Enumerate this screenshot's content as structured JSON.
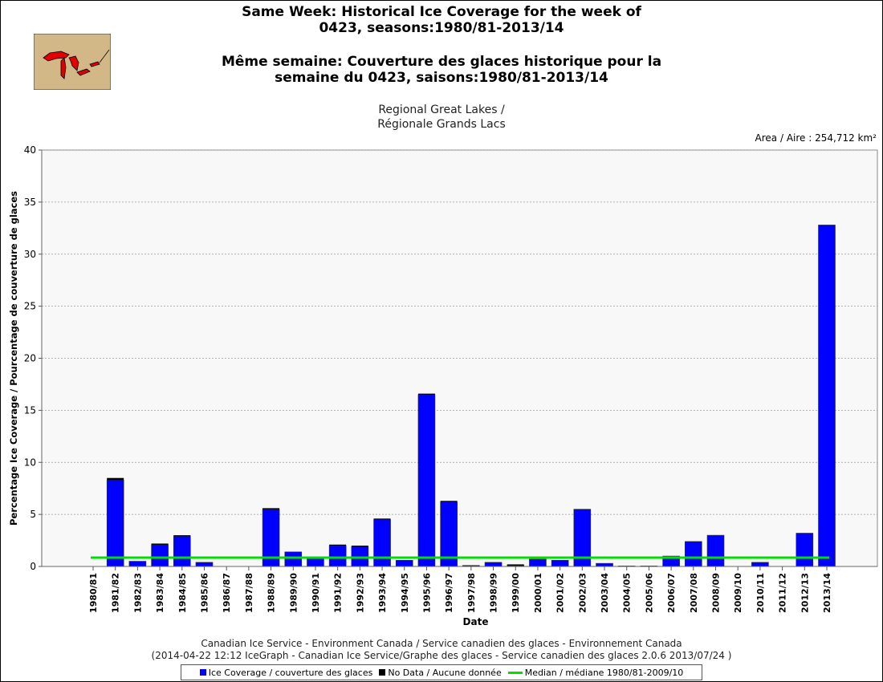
{
  "title_line1": "Same Week: Historical Ice Coverage for the week of",
  "title_line2": "0423, seasons:1980/81-2013/14",
  "title_fr_line1": "Même semaine: Couverture des glaces historique pour la",
  "title_fr_line2": "semaine du 0423, saisons:1980/81-2013/14",
  "region_line1": "Regional Great Lakes /",
  "region_line2": "Régionale Grands Lacs",
  "area_label": "Area / Aire : 254,712 km²",
  "footer_line1": "Canadian Ice Service - Environment Canada / Service canadien des glaces - Environnement Canada",
  "footer_line2": "(2014-04-22 12:12 IceGraph - Canadian Ice Service/Graphe des glaces - Service canadien des glaces 2.0.6 2013/07/24 )",
  "legend": {
    "ice_label": "Ice Coverage / couverture des glaces",
    "nodata_label": "No Data / Aucune donnée",
    "median_label": "Median / médiane 1980/81-2009/10"
  },
  "colors": {
    "ice": "#0000ff",
    "nodata": "#000000",
    "median": "#00e000",
    "plot_bg": "#f8f8f8",
    "map_bg": "#d2b887",
    "lakes": "#e00000"
  },
  "chart_data": {
    "type": "bar",
    "xlabel": "Date",
    "ylabel": "Percentage Ice Coverage / Pourcentage de couverture de glaces",
    "ylim": [
      0,
      40
    ],
    "yticks": [
      0,
      5,
      10,
      15,
      20,
      25,
      30,
      35,
      40
    ],
    "grid": true,
    "categories": [
      "1980/81",
      "1981/82",
      "1982/83",
      "1983/84",
      "1984/85",
      "1985/86",
      "1986/87",
      "1987/88",
      "1988/89",
      "1989/90",
      "1990/91",
      "1991/92",
      "1992/93",
      "1993/94",
      "1994/95",
      "1995/96",
      "1996/97",
      "1997/98",
      "1998/99",
      "1999/00",
      "2000/01",
      "2001/02",
      "2002/03",
      "2003/04",
      "2004/05",
      "2005/06",
      "2006/07",
      "2007/08",
      "2008/09",
      "2009/10",
      "2010/11",
      "2011/12",
      "2012/13",
      "2013/14"
    ],
    "series": [
      {
        "name": "Ice Coverage / couverture des glaces",
        "values": [
          0,
          8.3,
          0.5,
          2.1,
          2.9,
          0.4,
          0,
          0,
          5.5,
          1.4,
          0.9,
          2.0,
          1.9,
          4.5,
          0.6,
          16.5,
          6.2,
          0.1,
          0.4,
          0.1,
          0.7,
          0.6,
          5.5,
          0.3,
          0.05,
          0.05,
          1.0,
          2.4,
          3.0,
          0,
          0.4,
          0,
          3.2,
          32.8
        ]
      },
      {
        "name": "No Data / Aucune donnée",
        "values": [
          0,
          0.2,
          0,
          0.1,
          0.1,
          0,
          0,
          0,
          0.1,
          0,
          0,
          0.1,
          0.1,
          0.1,
          0,
          0.1,
          0.1,
          0,
          0,
          0.1,
          0,
          0,
          0,
          0,
          0,
          0,
          0,
          0,
          0,
          0,
          0,
          0,
          0,
          0
        ]
      }
    ],
    "median": {
      "name": "Median / médiane 1980/81-2009/10",
      "value": 0.85
    }
  }
}
